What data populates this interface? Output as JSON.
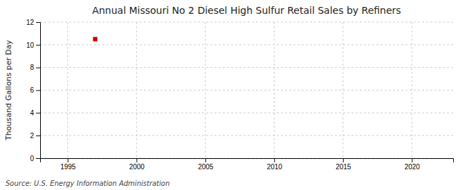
{
  "chart_data": {
    "type": "scatter",
    "title": "Annual Missouri No 2 Diesel High Sulfur Retail Sales by Refiners",
    "ylabel": "Thousand Gallons per Day",
    "annotation": "Source: U.S. Energy Information Administration",
    "x": [
      1997
    ],
    "values": [
      10.5
    ],
    "color": "#cc0000",
    "marker": "square",
    "xlim": [
      1993,
      2023
    ],
    "ylim": [
      0,
      12
    ],
    "xticks": [
      1995,
      2000,
      2005,
      2010,
      2015,
      2020
    ],
    "yticks": [
      0,
      2,
      4,
      6,
      8,
      10,
      12
    ],
    "grid": true
  }
}
